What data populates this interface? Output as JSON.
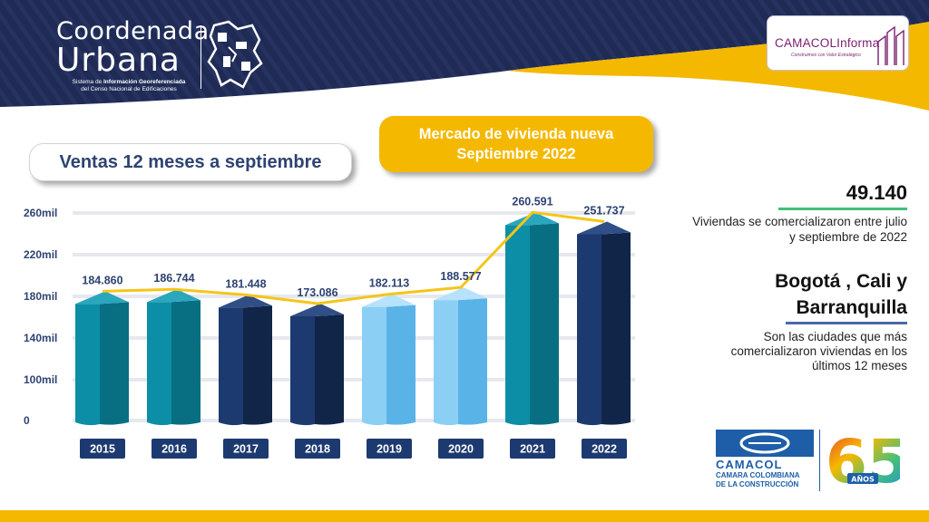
{
  "header": {
    "logo_line1": "Coordenada",
    "logo_line2": "Urbana",
    "logo_sub_prefix": "Sistema de ",
    "logo_sub_bold": "Información Georeferenciada",
    "logo_sub_line2": "del Censo Nacional de Edificaciones",
    "partner_logo": "CAMACOLInforma",
    "partner_sub": "Construimos con Valor Estratégico"
  },
  "titles": {
    "ventas": "Ventas 12 meses a septiembre",
    "mercado_line1": "Mercado de vivienda nueva",
    "mercado_line2": "Septiembre 2022"
  },
  "stats": {
    "total": "49.140",
    "total_desc": "Viviendas se comercializaron entre julio y septiembre de 2022",
    "cities_line1": "Bogotá , Cali y",
    "cities_line2": "Barranquilla",
    "cities_desc": "Son las ciudades que más comercializaron viviendas en los últimos 12 meses"
  },
  "footer": {
    "org_name": "CAMACOL",
    "org_full_line1": "CAMARA COLOMBIANA",
    "org_full_line2": "DE LA CONSTRUCCIÓN",
    "anniversary_number": "65",
    "anniversary_word": "AÑOS"
  },
  "colors": {
    "navy": "#1f2a55",
    "yellow": "#f5b800",
    "teal": "#0b8ea6",
    "dark_navy": "#1d3a70",
    "light_blue": "#8ccff5",
    "line": "#f5c518"
  },
  "chart_data": {
    "type": "bar",
    "title": "Ventas 12 meses a septiembre",
    "categories": [
      "2015",
      "2016",
      "2017",
      "2018",
      "2019",
      "2020",
      "2021",
      "2022"
    ],
    "values": [
      184860,
      186744,
      181448,
      173086,
      182113,
      188577,
      260591,
      251737
    ],
    "data_labels": [
      "184.860",
      "186.744",
      "181.448",
      "173.086",
      "182.113",
      "188.577",
      "260.591",
      "251.737"
    ],
    "bar_styles": [
      "teal",
      "teal",
      "dark_navy",
      "dark_navy",
      "light_blue",
      "light_blue",
      "teal",
      "dark_navy"
    ],
    "yticks": [
      0,
      100000,
      140000,
      180000,
      220000,
      260000
    ],
    "ytick_labels": [
      "0",
      "100mil",
      "140mil",
      "180mil",
      "220mil",
      "260mil"
    ],
    "overlay_line": true,
    "grid": true
  }
}
